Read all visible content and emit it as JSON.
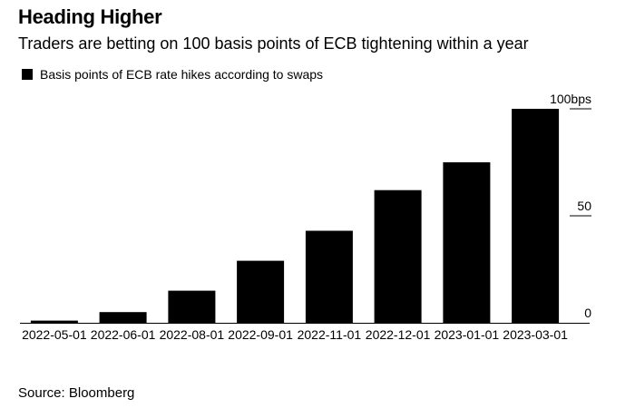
{
  "header": {
    "title": "Heading Higher",
    "subtitle": "Traders are betting on 100 basis points of ECB tightening within a year"
  },
  "footer": {
    "source": "Source: Bloomberg"
  },
  "colors": {
    "bar": "#000000",
    "axis": "#000000",
    "text": "#000000"
  },
  "chart_data": {
    "type": "bar",
    "categories": [
      "2022-05-01",
      "2022-06-01",
      "2022-08-01",
      "2022-09-01",
      "2022-11-01",
      "2022-12-01",
      "2023-01-01",
      "2023-03-01"
    ],
    "series": [
      {
        "name": "Basis points of ECB rate hikes according to swaps",
        "values": [
          1,
          5,
          15,
          29,
          43,
          62,
          75,
          100
        ]
      }
    ],
    "y_ticks": [
      {
        "value": 100,
        "label": "100bps"
      },
      {
        "value": 50,
        "label": "50"
      },
      {
        "value": 0,
        "label": "0"
      }
    ],
    "ylim": [
      0,
      100
    ],
    "legend_position": "top-left",
    "grid": false
  }
}
